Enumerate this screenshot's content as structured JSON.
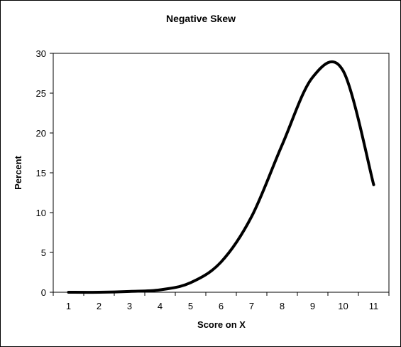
{
  "chart_data": {
    "type": "line",
    "title": "Negative Skew",
    "xlabel": "Score on X",
    "ylabel": "Percent",
    "x_ticks": [
      "1",
      "2",
      "3",
      "4",
      "5",
      "6",
      "7",
      "8",
      "9",
      "10",
      "11"
    ],
    "y_ticks": [
      "0",
      "5",
      "10",
      "15",
      "20",
      "25",
      "30"
    ],
    "xlim": [
      0.5,
      11.5
    ],
    "ylim": [
      0,
      30
    ],
    "grid": false,
    "legend": "none",
    "line_color": "#000000",
    "series": [
      {
        "x": [
          1,
          2,
          3,
          4,
          5,
          6,
          7,
          8,
          9,
          10,
          11
        ],
        "values": [
          0,
          0,
          0.1,
          0.3,
          1.2,
          3.8,
          9.5,
          18.5,
          27.0,
          27.8,
          13.5
        ]
      }
    ]
  }
}
